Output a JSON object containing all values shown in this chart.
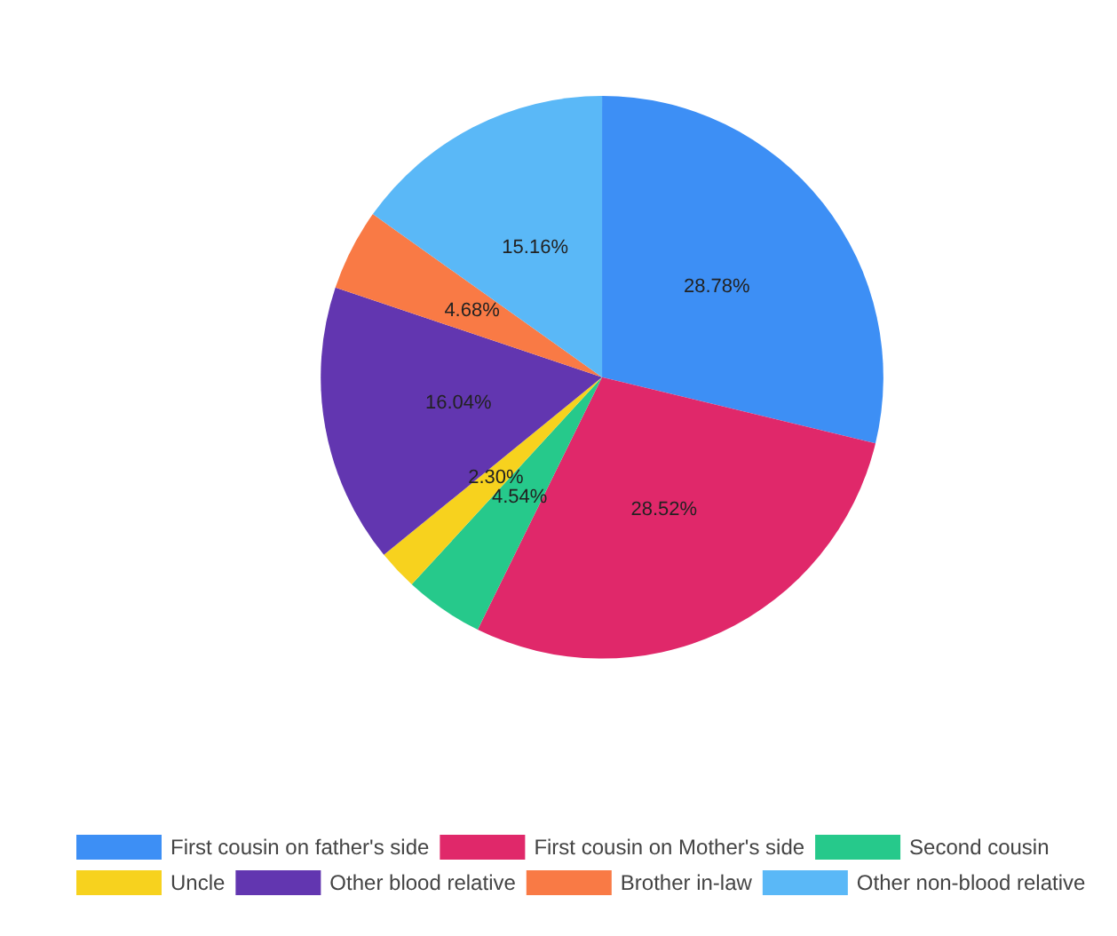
{
  "chart_data": {
    "type": "pie",
    "categories": [
      "First cousin on father's side",
      "First cousin on Mother's side",
      "Second cousin",
      "Uncle",
      "Other blood relative",
      "Brother in-law",
      "Other non-blood relative"
    ],
    "values": [
      28.78,
      28.52,
      4.54,
      2.3,
      16.04,
      4.68,
      15.16
    ],
    "value_labels": [
      "28.78%",
      "28.52%",
      "4.54%",
      "2.30%",
      "16.04%",
      "4.68%",
      "15.16%"
    ],
    "colors": [
      "#3d8ff5",
      "#e0286a",
      "#26c98b",
      "#f7d21e",
      "#6236b0",
      "#f97a45",
      "#5ab8f7"
    ],
    "legend": "bottom"
  }
}
